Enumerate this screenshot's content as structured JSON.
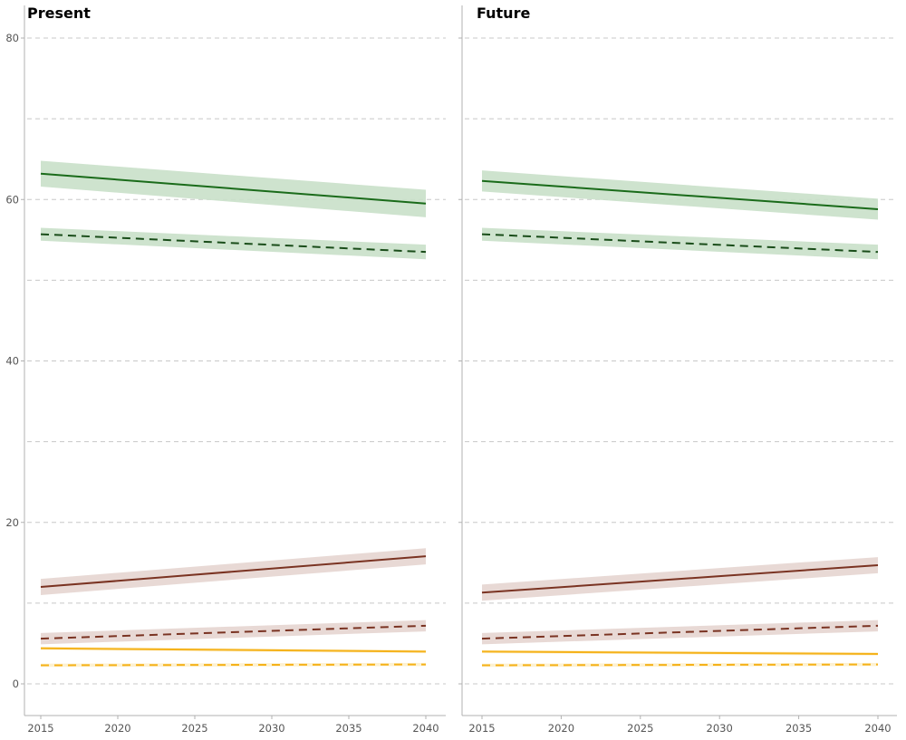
{
  "chart_data": [
    {
      "type": "line",
      "title": "Present",
      "x_ticks": [
        2015,
        2020,
        2025,
        2030,
        2035,
        2040
      ],
      "y_ticks": [
        0,
        20,
        40,
        60,
        80
      ],
      "xlim": [
        2015,
        2040
      ],
      "ylim": [
        -2,
        82
      ],
      "grid": true,
      "series": [
        {
          "color": "#1a6b1a",
          "line": "solid",
          "band_color": "#c9e0c9",
          "x": [
            2015,
            2040
          ],
          "y": [
            63.2,
            59.5
          ],
          "lower": [
            61.6,
            57.8
          ],
          "upper": [
            64.8,
            61.2
          ]
        },
        {
          "color": "#1a4d1a",
          "line": "dashed",
          "band_color": "#c9e0c9",
          "x": [
            2015,
            2040
          ],
          "y": [
            55.7,
            53.5
          ],
          "lower": [
            54.9,
            52.6
          ],
          "upper": [
            56.5,
            54.4
          ]
        },
        {
          "color": "#7a3322",
          "line": "solid",
          "band_color": "#e6d5d0",
          "x": [
            2015,
            2040
          ],
          "y": [
            12.0,
            15.8
          ],
          "lower": [
            11.0,
            14.8
          ],
          "upper": [
            13.0,
            16.8
          ]
        },
        {
          "color": "#7a3322",
          "line": "dashed",
          "band_color": "#e6d5d0",
          "x": [
            2015,
            2040
          ],
          "y": [
            5.6,
            7.2
          ],
          "lower": [
            4.9,
            6.5
          ],
          "upper": [
            6.3,
            7.9
          ]
        },
        {
          "color": "#f5b21a",
          "line": "solid",
          "band_color": "#fdf0cc",
          "x": [
            2015,
            2040
          ],
          "y": [
            4.4,
            4.0
          ],
          "lower": [
            4.2,
            3.8
          ],
          "upper": [
            4.6,
            4.2
          ]
        },
        {
          "color": "#f5b21a",
          "line": "dashed",
          "band_color": "#fdf0cc",
          "x": [
            2015,
            2040
          ],
          "y": [
            2.3,
            2.4
          ],
          "lower": [
            2.1,
            2.2
          ],
          "upper": [
            2.5,
            2.6
          ]
        }
      ]
    },
    {
      "type": "line",
      "title": "Future",
      "x_ticks": [
        2015,
        2020,
        2025,
        2030,
        2035,
        2040
      ],
      "y_ticks": [
        0,
        20,
        40,
        60,
        80
      ],
      "xlim": [
        2015,
        2040
      ],
      "ylim": [
        -2,
        82
      ],
      "grid": true,
      "series": [
        {
          "color": "#1a6b1a",
          "line": "solid",
          "band_color": "#c9e0c9",
          "x": [
            2015,
            2040
          ],
          "y": [
            62.3,
            58.8
          ],
          "lower": [
            61.0,
            57.5
          ],
          "upper": [
            63.6,
            60.1
          ]
        },
        {
          "color": "#1a4d1a",
          "line": "dashed",
          "band_color": "#c9e0c9",
          "x": [
            2015,
            2040
          ],
          "y": [
            55.7,
            53.5
          ],
          "lower": [
            54.9,
            52.6
          ],
          "upper": [
            56.5,
            54.4
          ]
        },
        {
          "color": "#7a3322",
          "line": "solid",
          "band_color": "#e6d5d0",
          "x": [
            2015,
            2040
          ],
          "y": [
            11.3,
            14.7
          ],
          "lower": [
            10.3,
            13.7
          ],
          "upper": [
            12.3,
            15.7
          ]
        },
        {
          "color": "#7a3322",
          "line": "dashed",
          "band_color": "#e6d5d0",
          "x": [
            2015,
            2040
          ],
          "y": [
            5.6,
            7.2
          ],
          "lower": [
            4.9,
            6.5
          ],
          "upper": [
            6.3,
            7.9
          ]
        },
        {
          "color": "#f5b21a",
          "line": "solid",
          "band_color": "#fdf0cc",
          "x": [
            2015,
            2040
          ],
          "y": [
            4.0,
            3.7
          ],
          "lower": [
            3.8,
            3.5
          ],
          "upper": [
            4.2,
            3.9
          ]
        },
        {
          "color": "#f5b21a",
          "line": "dashed",
          "band_color": "#fdf0cc",
          "x": [
            2015,
            2040
          ],
          "y": [
            2.3,
            2.4
          ],
          "lower": [
            2.1,
            2.2
          ],
          "upper": [
            2.5,
            2.6
          ]
        }
      ]
    }
  ]
}
